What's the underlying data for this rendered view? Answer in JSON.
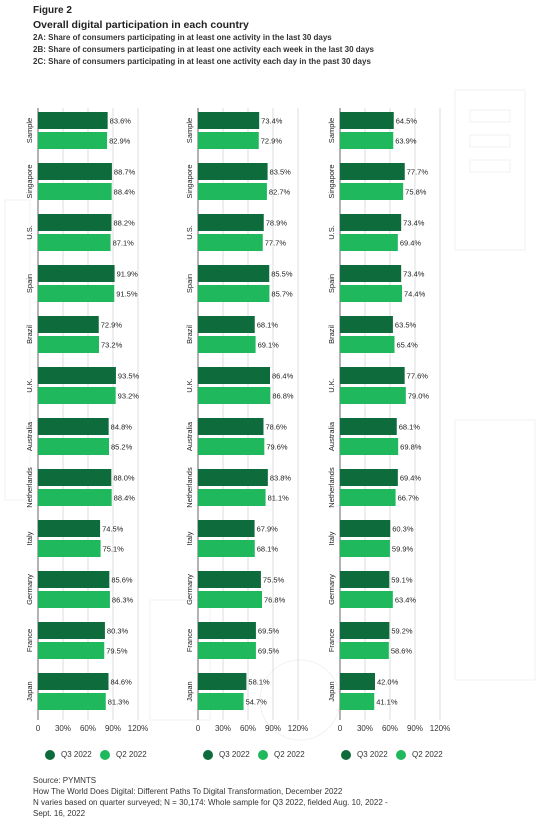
{
  "figure_label": "Figure 2",
  "title": "Overall digital participation in each country",
  "subtitles": [
    "2A: Share of consumers participating in at least one activity in the last 30 days",
    "2B: Share of consumers participating in at least one activity each week in the last 30 days",
    "2C: Share of consumers participating in at least one activity each day in the past 30 days"
  ],
  "colors": {
    "q3": "#0d6b3c",
    "q2": "#1fb85c",
    "grid": "#d4d4d4",
    "axis": "#666666"
  },
  "legend": {
    "q3_label": "Q3 2022",
    "q2_label": "Q2 2022"
  },
  "footer": {
    "source": "Source: PYMNTS",
    "line1": "How The World Does Digital: Different Paths To Digital Transformation, December 2022",
    "line2": "N varies based on quarter surveyed; N = 30,174: Whole sample for Q3 2022, fielded Aug. 10, 2022 -",
    "line3": "Sept. 16, 2022"
  },
  "chart_data": [
    {
      "type": "bar",
      "orientation": "horizontal",
      "categories": [
        "Sample",
        "Singapore",
        "U.S.",
        "Spain",
        "Brazil",
        "U.K.",
        "Australia",
        "Netherlands",
        "Italy",
        "Germany",
        "France",
        "Japan"
      ],
      "series": [
        {
          "name": "Q3 2022",
          "values": [
            83.6,
            88.7,
            88.2,
            91.9,
            72.9,
            93.5,
            84.8,
            88.0,
            74.5,
            85.6,
            80.3,
            84.6
          ]
        },
        {
          "name": "Q2 2022",
          "values": [
            82.9,
            88.4,
            87.1,
            91.5,
            73.2,
            93.2,
            85.2,
            88.4,
            75.1,
            86.3,
            79.5,
            81.3
          ]
        }
      ],
      "xlim": [
        0,
        120
      ],
      "xticks": [
        "0",
        "30%",
        "60%",
        "90%",
        "120%"
      ]
    },
    {
      "type": "bar",
      "orientation": "horizontal",
      "categories": [
        "Sample",
        "Singapore",
        "U.S.",
        "Spain",
        "Brazil",
        "U.K.",
        "Australia",
        "Netherlands",
        "Italy",
        "Germany",
        "France",
        "Japan"
      ],
      "series": [
        {
          "name": "Q3 2022",
          "values": [
            73.4,
            83.5,
            78.9,
            85.5,
            68.1,
            86.4,
            78.6,
            83.8,
            67.9,
            75.5,
            69.5,
            58.1
          ]
        },
        {
          "name": "Q2 2022",
          "values": [
            72.9,
            82.7,
            77.7,
            85.7,
            69.1,
            86.8,
            79.6,
            81.1,
            68.1,
            76.8,
            69.5,
            54.7
          ]
        }
      ],
      "xlim": [
        0,
        120
      ],
      "xticks": [
        "0",
        "30%",
        "60%",
        "90%",
        "120%"
      ]
    },
    {
      "type": "bar",
      "orientation": "horizontal",
      "categories": [
        "Sample",
        "Singapore",
        "U.S.",
        "Spain",
        "Brazil",
        "U.K.",
        "Australia",
        "Netherlands",
        "Italy",
        "Germany",
        "France",
        "Japan"
      ],
      "series": [
        {
          "name": "Q3 2022",
          "values": [
            64.5,
            77.7,
            73.4,
            73.4,
            63.5,
            77.6,
            68.1,
            69.4,
            60.3,
            59.1,
            59.2,
            42.0
          ]
        },
        {
          "name": "Q2 2022",
          "values": [
            63.9,
            75.8,
            69.4,
            74.4,
            65.4,
            79.0,
            69.8,
            66.7,
            59.9,
            63.4,
            58.6,
            41.1
          ]
        }
      ],
      "xlim": [
        0,
        120
      ],
      "xticks": [
        "0",
        "30%",
        "60%",
        "90%",
        "120%"
      ]
    }
  ]
}
